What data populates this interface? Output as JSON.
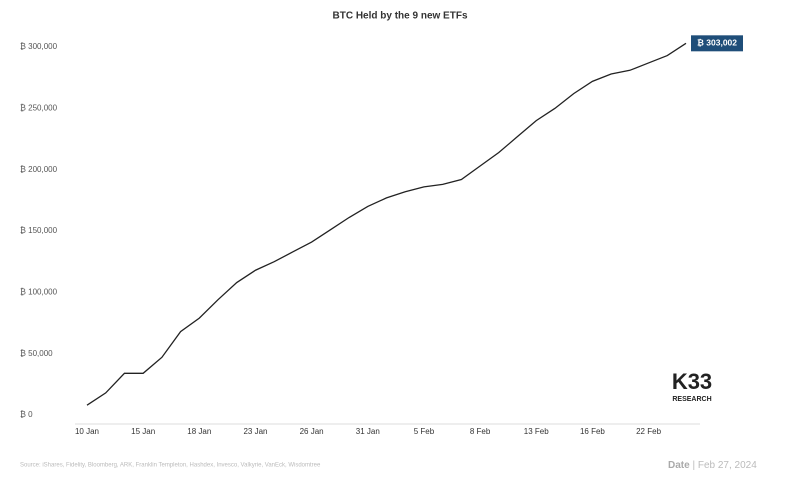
{
  "chart_data": {
    "type": "line",
    "title": "BTC Held by the 9 new ETFs",
    "categories": [
      "10 Jan",
      null,
      null,
      "15 Jan",
      null,
      null,
      "18 Jan",
      null,
      null,
      "23 Jan",
      null,
      null,
      "26 Jan",
      null,
      null,
      "31 Jan",
      null,
      null,
      "5 Feb",
      null,
      null,
      "8 Feb",
      null,
      null,
      "13 Feb",
      null,
      null,
      "16 Feb",
      null,
      null,
      "22 Feb",
      null,
      null
    ],
    "series": [
      {
        "name": "BTC Held",
        "color": "#222222",
        "values": [
          8000,
          18000,
          34000,
          34000,
          47000,
          68000,
          79000,
          94000,
          108000,
          118000,
          125000,
          133000,
          141000,
          151000,
          161000,
          170000,
          177000,
          182000,
          186000,
          188000,
          192000,
          203000,
          214000,
          227000,
          240000,
          250000,
          262000,
          272000,
          278000,
          281000,
          287000,
          293000,
          303002
        ],
        "value_labels": [
          null,
          null,
          null,
          null,
          null,
          null,
          null,
          null,
          null,
          null,
          null,
          null,
          null,
          null,
          null,
          null,
          null,
          null,
          null,
          null,
          null,
          null,
          null,
          null,
          null,
          null,
          null,
          null,
          null,
          null,
          null,
          null,
          "₿ 303,002"
        ]
      }
    ],
    "label_color": "#1f4e79",
    "ylim": [
      0,
      300000
    ],
    "yticks": [
      {
        "value": 0,
        "label": "₿ 0"
      },
      {
        "value": 50000,
        "label": "₿ 50,000"
      },
      {
        "value": 100000,
        "label": "₿ 100,000"
      },
      {
        "value": 150000,
        "label": "₿ 150,000"
      },
      {
        "value": 200000,
        "label": "₿ 200,000"
      },
      {
        "value": 250000,
        "label": "₿ 250,000"
      },
      {
        "value": 300000,
        "label": "₿ 300,000"
      }
    ],
    "grid": false
  },
  "logo": {
    "main": "K33",
    "sub": "RESEARCH"
  },
  "footer": {
    "source": "Source: iShares, Fidelity, Bloomberg, ARK, Franklin Templeton, Hashdex, Invesco, Valkyrie, VanEck, Wisdomtree",
    "date_label": "Date",
    "date": "| Feb 27, 2024"
  }
}
